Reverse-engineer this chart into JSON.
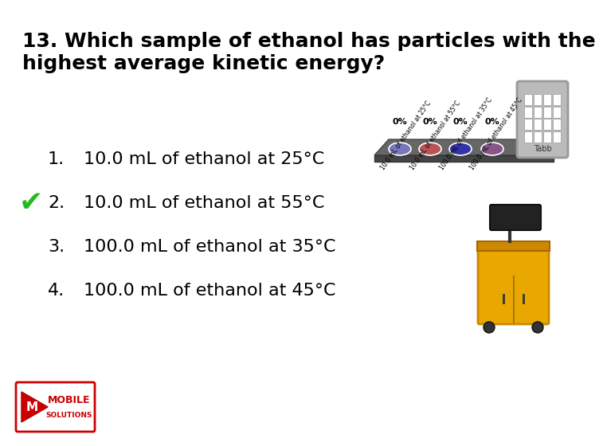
{
  "background_color": "#ffffff",
  "title_line1": "13. Which sample of ethanol has particles with the",
  "title_line2": "highest average kinetic energy?",
  "title_fontsize": 18,
  "answer_items": [
    "10.0 mL of ethanol at 25°C",
    "10.0 mL of ethanol at 55°C",
    "100.0 mL of ethanol at 35°C",
    "100.0 mL of ethanol at 45°C"
  ],
  "answer_numbers": [
    "1.",
    "2.",
    "3.",
    "4."
  ],
  "correct_answer_index": 1,
  "answer_fontsize": 16,
  "checkmark_color": "#22bb22",
  "checkmark_fontsize": 26,
  "poll_bar_colors": [
    "#7777bb",
    "#bb5555",
    "#3333aa",
    "#885588"
  ],
  "poll_percentages": [
    "0%",
    "0%",
    "0%",
    "0%"
  ],
  "diag_labels": [
    "10.0 mL of ethanol at 25°C",
    "10.0 mL of ethanol at 55°C",
    "100.0 mL of ethanol at 35°C",
    "100.0 mL of ethanol at 45°C"
  ]
}
